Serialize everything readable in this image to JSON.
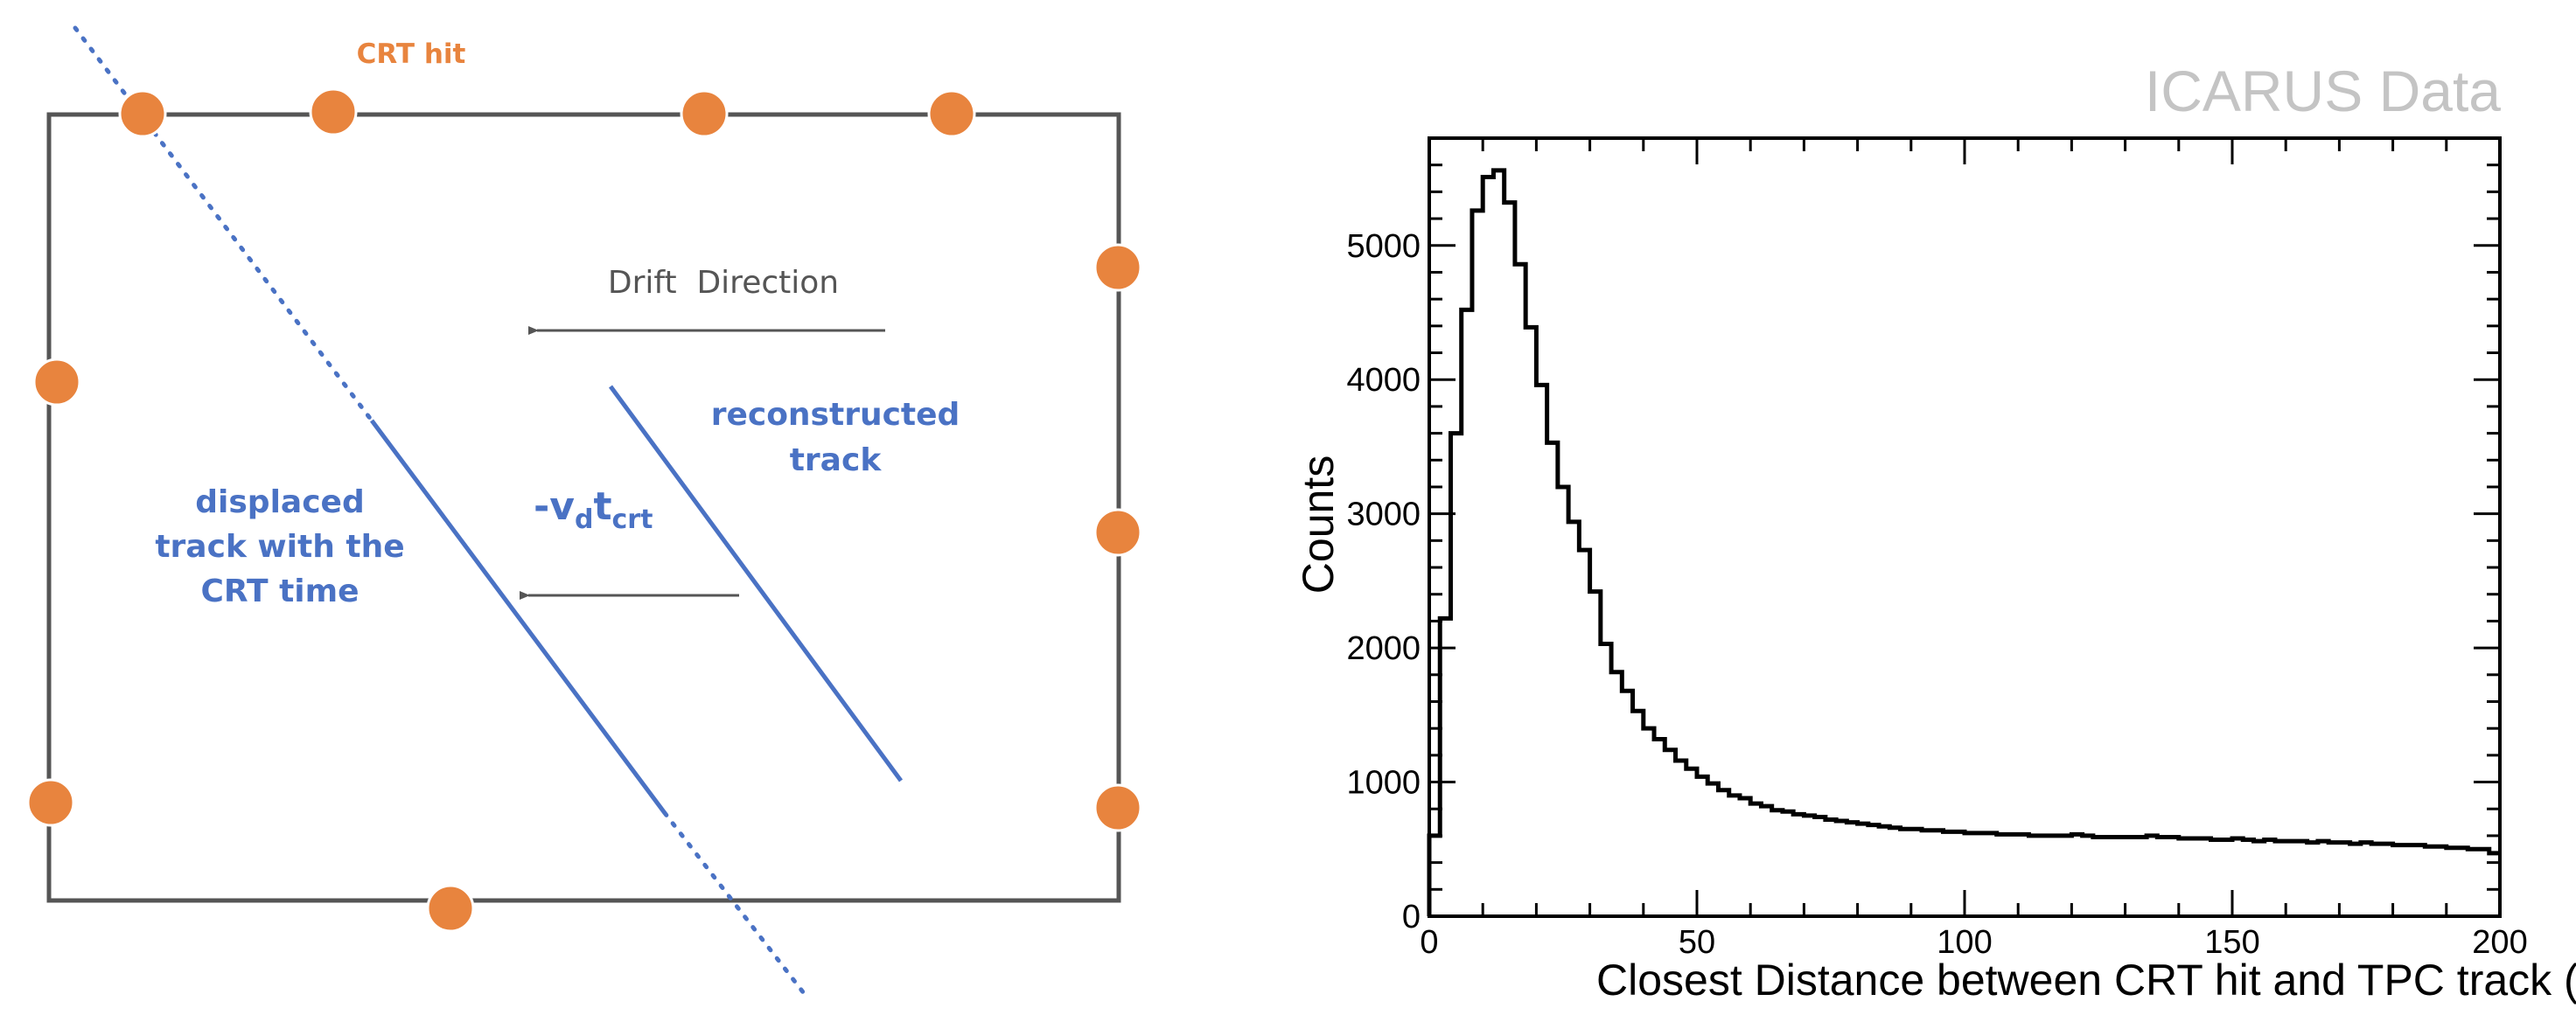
{
  "diagram": {
    "crt_hit_label": "CRT hit",
    "drift_direction_label": "Drift  Direction",
    "reconstructed_track_line1": "reconstructed",
    "reconstructed_track_line2": "track",
    "displaced_line1": "displaced",
    "displaced_line2": "track with the",
    "displaced_line3": "CRT time",
    "shift_v": "-v",
    "shift_d": "d",
    "shift_t": "t",
    "shift_crt": "crt",
    "colors": {
      "crt_hit": "#E8843E",
      "track": "#4A72C4",
      "frame": "#555555",
      "arrow": "#555555"
    }
  },
  "watermark": "ICARUS Data",
  "chart_data": {
    "type": "histogram",
    "xlabel": "Closest Distance between CRT hit and TPC track (cm)",
    "ylabel": "Counts",
    "xlim": [
      0,
      200
    ],
    "ylim": [
      0,
      5800
    ],
    "x_ticks": [
      0,
      50,
      100,
      150,
      200
    ],
    "y_ticks": [
      0,
      1000,
      2000,
      3000,
      4000,
      5000
    ],
    "bin_width": 2,
    "bin_edges_start": 0,
    "values": [
      600,
      2220,
      3600,
      4520,
      5260,
      5510,
      5560,
      5320,
      4860,
      4390,
      3960,
      3530,
      3200,
      2940,
      2730,
      2420,
      2030,
      1820,
      1680,
      1530,
      1400,
      1320,
      1240,
      1160,
      1100,
      1040,
      990,
      940,
      900,
      880,
      840,
      820,
      790,
      780,
      760,
      750,
      740,
      720,
      710,
      700,
      690,
      680,
      670,
      660,
      650,
      650,
      640,
      640,
      630,
      630,
      620,
      620,
      620,
      610,
      610,
      610,
      600,
      600,
      600,
      600,
      610,
      600,
      590,
      590,
      590,
      590,
      590,
      600,
      590,
      590,
      580,
      580,
      580,
      570,
      570,
      580,
      570,
      560,
      570,
      560,
      560,
      560,
      550,
      560,
      550,
      550,
      540,
      550,
      540,
      540,
      530,
      530,
      530,
      520,
      520,
      510,
      510,
      500,
      500,
      470
    ]
  }
}
